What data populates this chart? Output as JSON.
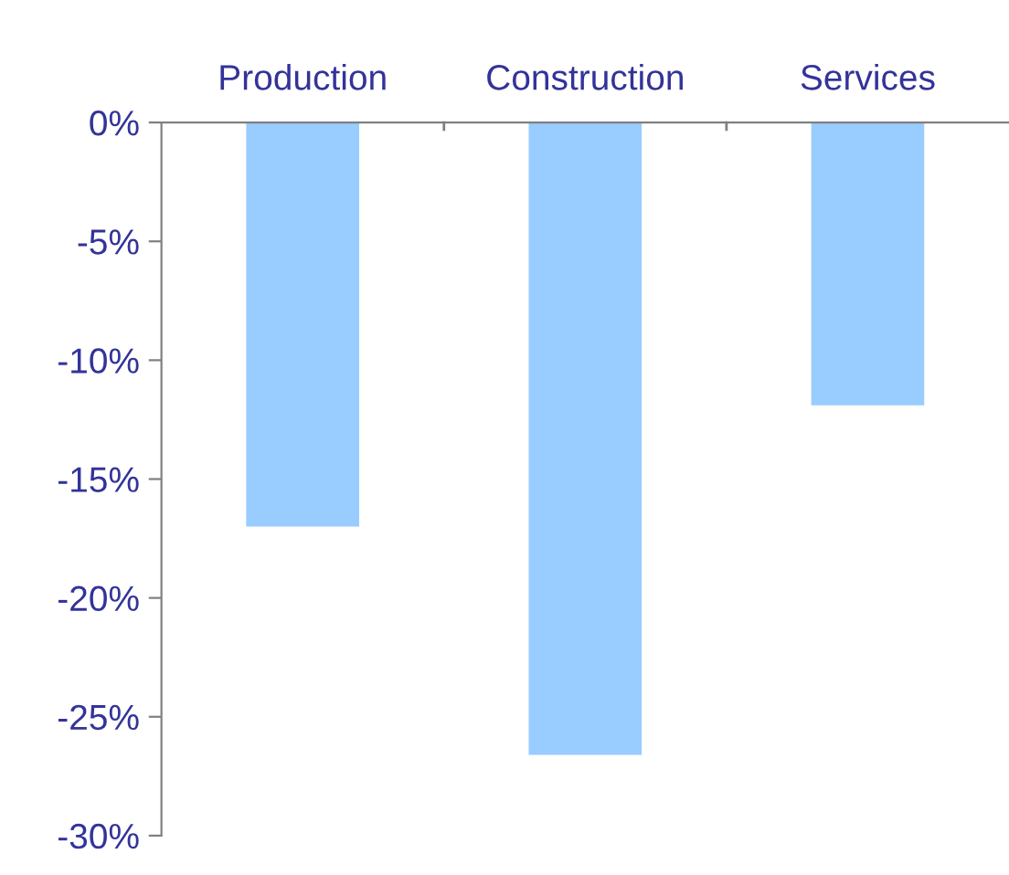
{
  "chart_data": {
    "type": "bar",
    "categories": [
      "Production",
      "Construction",
      "Services"
    ],
    "values": [
      -17.0,
      -26.6,
      -11.9
    ],
    "color": "#99ccff",
    "ylim": [
      -30,
      0
    ],
    "yticks": [
      {
        "value": 0,
        "label": "0%"
      },
      {
        "value": -5,
        "label": "-5%"
      },
      {
        "value": -10,
        "label": "-10%"
      },
      {
        "value": -15,
        "label": "-15%"
      },
      {
        "value": -20,
        "label": "-20%"
      },
      {
        "value": -25,
        "label": "-25%"
      },
      {
        "value": -30,
        "label": "-30%"
      }
    ],
    "grid": false,
    "legend": false
  }
}
